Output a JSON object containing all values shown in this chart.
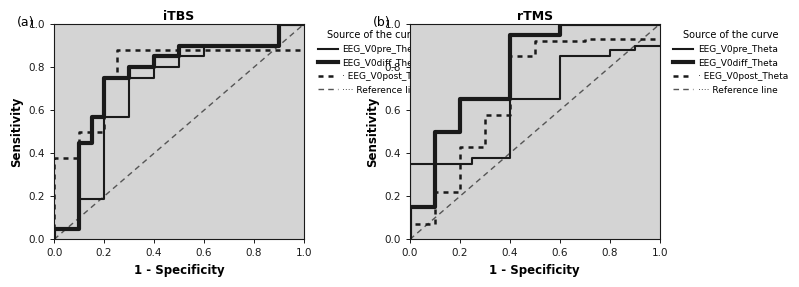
{
  "panel_a": {
    "title": "iTBS",
    "curves": {
      "VOpre": {
        "x": [
          0.0,
          0.0,
          0.1,
          0.1,
          0.2,
          0.2,
          0.3,
          0.3,
          0.4,
          0.4,
          0.5,
          0.5,
          0.6,
          0.6,
          0.9,
          0.9,
          1.0
        ],
        "y": [
          0.0,
          0.05,
          0.05,
          0.19,
          0.19,
          0.57,
          0.57,
          0.75,
          0.75,
          0.8,
          0.8,
          0.85,
          0.85,
          0.9,
          0.9,
          1.0,
          1.0
        ],
        "lw": 1.5
      },
      "VOdiff": {
        "x": [
          0.0,
          0.0,
          0.1,
          0.1,
          0.15,
          0.15,
          0.2,
          0.2,
          0.3,
          0.3,
          0.4,
          0.4,
          0.5,
          0.5,
          0.9,
          0.9,
          1.0
        ],
        "y": [
          0.0,
          0.05,
          0.05,
          0.45,
          0.45,
          0.57,
          0.57,
          0.75,
          0.75,
          0.8,
          0.8,
          0.85,
          0.85,
          0.9,
          0.9,
          1.0,
          1.0
        ],
        "lw": 3.0
      },
      "VOpost": {
        "x": [
          0.0,
          0.0,
          0.1,
          0.1,
          0.2,
          0.2,
          0.25,
          0.25,
          0.5,
          0.5,
          1.0
        ],
        "y": [
          0.0,
          0.38,
          0.38,
          0.5,
          0.5,
          0.75,
          0.75,
          0.88,
          0.88,
          0.88,
          0.88
        ],
        "lw": 1.8
      }
    }
  },
  "panel_b": {
    "title": "rTMS",
    "curves": {
      "VOpre": {
        "x": [
          0.0,
          0.0,
          0.1,
          0.1,
          0.2,
          0.2,
          0.4,
          0.4,
          0.6,
          0.6,
          1.0
        ],
        "y": [
          0.0,
          0.15,
          0.15,
          0.5,
          0.5,
          0.65,
          0.65,
          0.95,
          0.95,
          1.0,
          1.0
        ],
        "lw": 3.0
      },
      "VOdiff": {
        "x": [
          0.0,
          0.0,
          0.25,
          0.25,
          0.4,
          0.4,
          0.6,
          0.6,
          0.8,
          0.8,
          0.9,
          0.9,
          1.0
        ],
        "y": [
          0.0,
          0.35,
          0.35,
          0.38,
          0.38,
          0.65,
          0.65,
          0.85,
          0.85,
          0.88,
          0.88,
          0.9,
          0.9
        ],
        "lw": 1.5
      },
      "VOpost": {
        "x": [
          0.0,
          0.0,
          0.1,
          0.1,
          0.2,
          0.2,
          0.3,
          0.3,
          0.4,
          0.4,
          0.5,
          0.5,
          0.6,
          0.6,
          0.7,
          0.7,
          0.9,
          0.9,
          1.0
        ],
        "y": [
          0.0,
          0.07,
          0.07,
          0.22,
          0.22,
          0.43,
          0.43,
          0.58,
          0.58,
          0.85,
          0.85,
          0.92,
          0.92,
          0.92,
          0.92,
          0.93,
          0.93,
          0.93,
          0.93
        ],
        "lw": 1.8
      }
    }
  },
  "bg_color": "#d4d4d4",
  "line_color": "#1a1a1a",
  "ref_color": "#555555",
  "xlabel": "1 - Specificity",
  "ylabel": "Sensitivity",
  "legend_title": "Source of the curve",
  "legend_labels": [
    "EEG_V0pre_Theta",
    "EEG_V0diff_Theta",
    "· EEG_V0post_Theta",
    "···· Reference line"
  ],
  "tick_labels": [
    "0.0",
    "0.2",
    "0.4",
    "0.6",
    "0.8",
    "1.0"
  ],
  "tick_vals": [
    0.0,
    0.2,
    0.4,
    0.6,
    0.8,
    1.0
  ],
  "panel_labels": [
    "(a)",
    "(b)"
  ]
}
